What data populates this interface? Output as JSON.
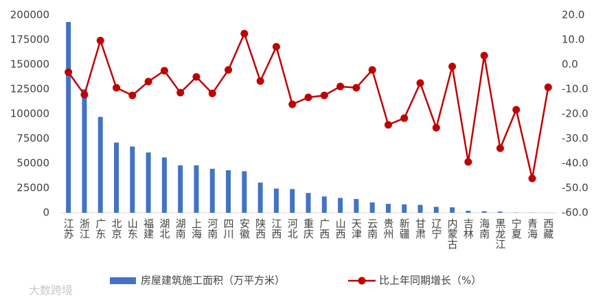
{
  "chart_data": {
    "type": "bar_line",
    "categories": [
      "江苏",
      "浙江",
      "广东",
      "北京",
      "山东",
      "福建",
      "湖北",
      "湖南",
      "上海",
      "河南",
      "四川",
      "安徽",
      "陕西",
      "江西",
      "河北",
      "重庆",
      "广西",
      "山西",
      "天津",
      "云南",
      "贵州",
      "新疆",
      "甘肃",
      "辽宁",
      "内蒙古",
      "吉林",
      "海南",
      "黑龙江",
      "宁夏",
      "青海",
      "西藏"
    ],
    "series": [
      {
        "name": "房屋建筑施工面积（万平方米）",
        "type": "bar",
        "color": "#4472c4",
        "values": [
          193000,
          125000,
          97000,
          71000,
          67000,
          61000,
          56000,
          48000,
          48000,
          44500,
          43000,
          42000,
          30500,
          24500,
          24000,
          20000,
          16500,
          15000,
          14000,
          10500,
          9000,
          8500,
          8000,
          6000,
          5500,
          2000,
          1500,
          1200,
          300,
          200,
          100
        ]
      },
      {
        "name": "比上年同期增长（%）",
        "type": "line",
        "axis": "y2",
        "color": "#c00000",
        "values": [
          -3.1,
          -12.2,
          9.7,
          -9.4,
          -12.5,
          -6.9,
          -2.5,
          -11.4,
          -5,
          -11.7,
          -2.2,
          12.5,
          -6.7,
          7.2,
          -16.1,
          -13.3,
          -12.5,
          -8.9,
          -9.4,
          -2.2,
          -24.4,
          -21.7,
          -7.5,
          -25.6,
          -0.8,
          -39.4,
          3.6,
          -33.9,
          -18.3,
          -46.1,
          -9.2
        ]
      }
    ],
    "ylim": [
      0,
      200000
    ],
    "yticks": [
      0,
      25000,
      50000,
      75000,
      100000,
      125000,
      150000,
      175000,
      200000
    ],
    "y2lim": [
      -60,
      20
    ],
    "y2ticks": [
      {
        "value": -60,
        "label": "-60.0"
      },
      {
        "value": -50,
        "label": "-50.0"
      },
      {
        "value": -40,
        "label": "-40.0"
      },
      {
        "value": -30,
        "label": "-30.0"
      },
      {
        "value": -20,
        "label": "-20.0"
      },
      {
        "value": -10,
        "label": "-10.0"
      },
      {
        "value": 0,
        "label": "0.0"
      },
      {
        "value": 10,
        "label": "10.0"
      },
      {
        "value": 20,
        "label": "20.0"
      }
    ],
    "grid": false,
    "legend": "bottom",
    "watermark": "大数跨境"
  }
}
